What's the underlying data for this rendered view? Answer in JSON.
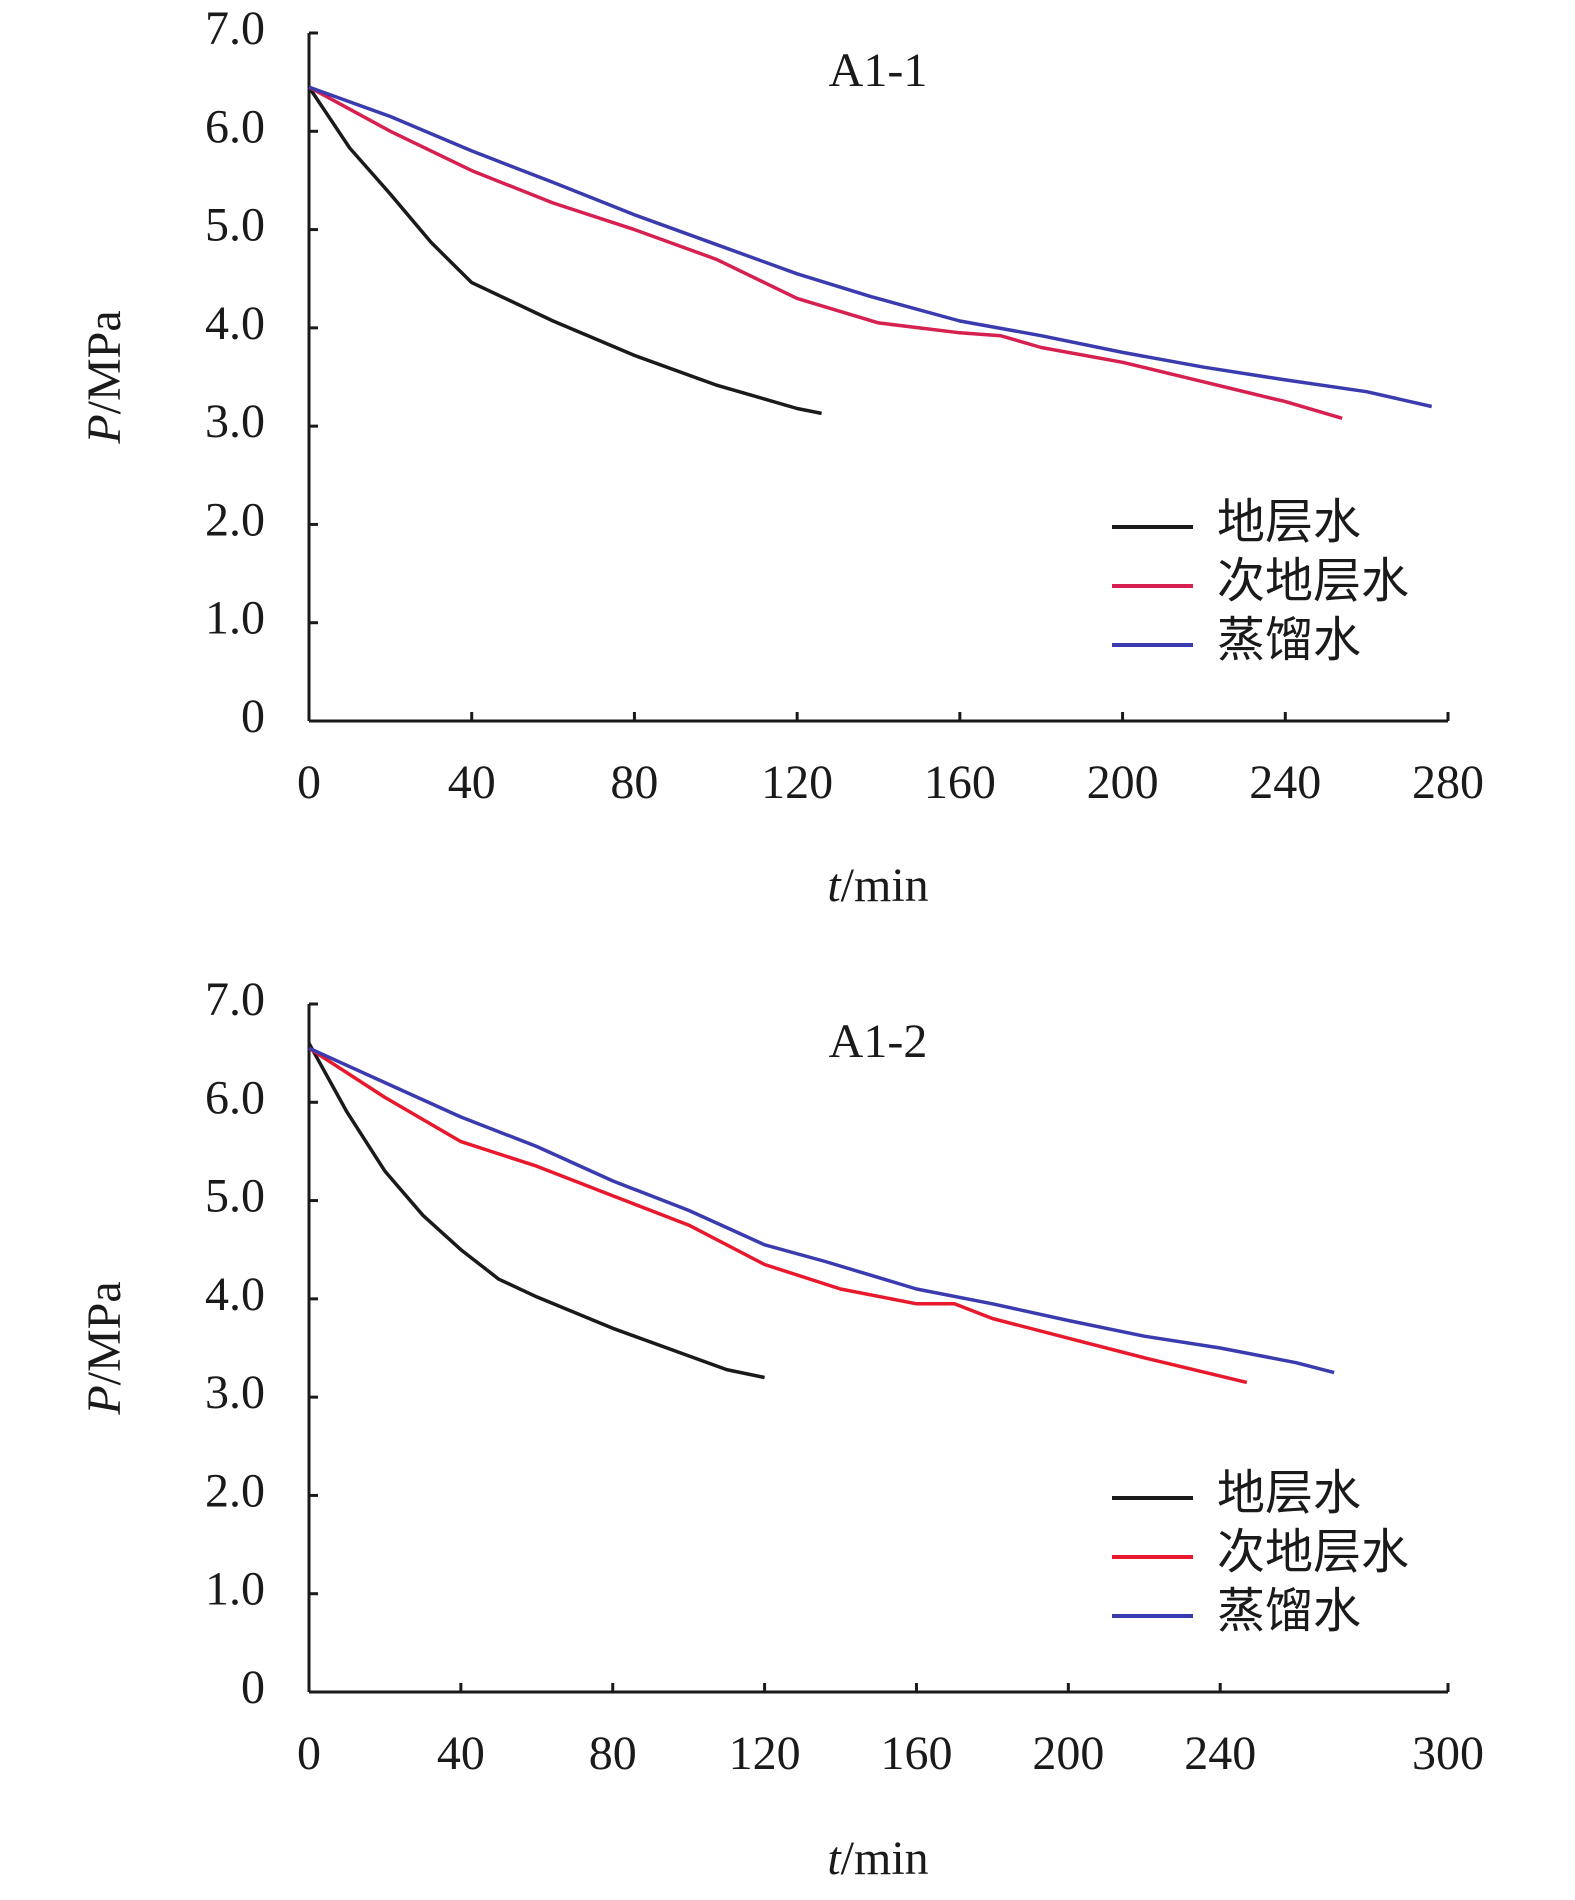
{
  "chart_data": [
    {
      "type": "line",
      "title": "A1-1",
      "x_label": "t/min",
      "y_label": "P/MPa",
      "xlim": [
        0,
        280
      ],
      "xticks": [
        0,
        40,
        80,
        120,
        160,
        200,
        240,
        280
      ],
      "ylim": [
        0,
        7
      ],
      "yticks": [
        0,
        {
          "value": 1,
          "label": "1.0"
        },
        {
          "value": 2,
          "label": "2.0"
        },
        {
          "value": 3,
          "label": "3.0"
        },
        {
          "value": 4,
          "label": "4.0"
        },
        {
          "value": 5,
          "label": "5.0"
        },
        {
          "value": 6,
          "label": "6.0"
        },
        {
          "value": 7,
          "label": "7.0"
        }
      ],
      "series": [
        {
          "name": "地层水",
          "color": "#1a1a1a",
          "x": [
            0,
            10,
            20,
            30,
            40,
            60,
            80,
            100,
            120,
            126
          ],
          "values": [
            6.45,
            5.83,
            5.36,
            4.87,
            4.46,
            4.07,
            3.72,
            3.42,
            3.18,
            3.13
          ]
        },
        {
          "name": "次地层水",
          "color": "#d6204f",
          "x": [
            0,
            20,
            40,
            60,
            80,
            100,
            120,
            140,
            160,
            170,
            180,
            200,
            220,
            240,
            254
          ],
          "values": [
            6.45,
            6.0,
            5.6,
            5.27,
            5.0,
            4.7,
            4.3,
            4.05,
            3.95,
            3.92,
            3.8,
            3.65,
            3.45,
            3.25,
            3.08
          ]
        },
        {
          "name": "蒸馏水",
          "color": "#3b3bb0",
          "x": [
            0,
            20,
            40,
            60,
            80,
            100,
            120,
            138,
            160,
            180,
            200,
            220,
            240,
            260,
            276
          ],
          "values": [
            6.45,
            6.15,
            5.8,
            5.48,
            5.15,
            4.85,
            4.55,
            4.32,
            4.07,
            3.92,
            3.75,
            3.6,
            3.47,
            3.35,
            3.2
          ]
        }
      ]
    },
    {
      "type": "line",
      "title": "A1-2",
      "x_label": "t/min",
      "y_label": "P/MPa",
      "xlim": [
        0,
        300
      ],
      "xticks": [
        0,
        40,
        80,
        120,
        160,
        200,
        240,
        300
      ],
      "ylim": [
        0,
        7
      ],
      "yticks": [
        0,
        {
          "value": 1,
          "label": "1.0"
        },
        {
          "value": 2,
          "label": "2.0"
        },
        {
          "value": 3,
          "label": "3.0"
        },
        {
          "value": 4,
          "label": "4.0"
        },
        {
          "value": 5,
          "label": "5.0"
        },
        {
          "value": 6,
          "label": "6.0"
        },
        {
          "value": 7,
          "label": "7.0"
        }
      ],
      "series": [
        {
          "name": "地层水",
          "color": "#1a1a1a",
          "x": [
            0,
            10,
            20,
            30,
            40,
            50,
            60,
            80,
            100,
            110,
            120
          ],
          "values": [
            6.6,
            5.9,
            5.3,
            4.85,
            4.5,
            4.2,
            4.02,
            3.7,
            3.42,
            3.28,
            3.2
          ]
        },
        {
          "name": "次地层水",
          "color": "#e8192c",
          "x": [
            0,
            20,
            40,
            60,
            80,
            100,
            120,
            140,
            160,
            170,
            180,
            200,
            220,
            247
          ],
          "values": [
            6.55,
            6.05,
            5.6,
            5.35,
            5.05,
            4.75,
            4.35,
            4.1,
            3.95,
            3.95,
            3.8,
            3.6,
            3.4,
            3.15
          ]
        },
        {
          "name": "蒸馏水",
          "color": "#3b3bb0",
          "x": [
            0,
            20,
            40,
            60,
            80,
            100,
            120,
            136,
            160,
            180,
            200,
            220,
            240,
            260,
            270
          ],
          "values": [
            6.55,
            6.2,
            5.85,
            5.55,
            5.2,
            4.9,
            4.55,
            4.38,
            4.1,
            3.95,
            3.78,
            3.62,
            3.5,
            3.35,
            3.25
          ]
        }
      ]
    }
  ]
}
